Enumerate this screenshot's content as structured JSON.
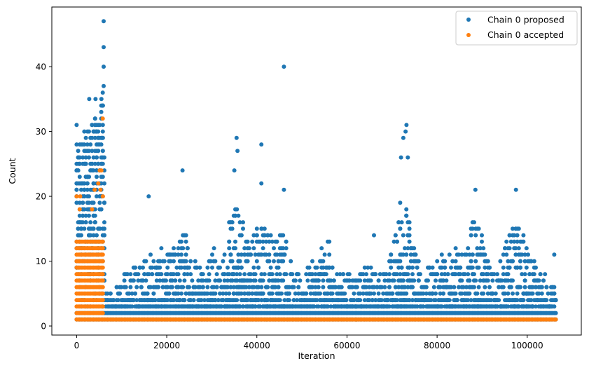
{
  "chart_data": {
    "type": "scatter",
    "xlabel": "Iteration",
    "ylabel": "Count",
    "xlim": [
      -5500,
      112000
    ],
    "ylim": [
      -1.4,
      49.2
    ],
    "xticks": [
      0,
      20000,
      40000,
      60000,
      80000,
      100000
    ],
    "xtick_labels": [
      "0",
      "20000",
      "40000",
      "60000",
      "80000",
      "100000"
    ],
    "yticks": [
      0,
      10,
      20,
      30,
      40
    ],
    "ytick_labels": [
      "0",
      "10",
      "20",
      "30",
      "40"
    ],
    "legend_position": "top-right",
    "series": [
      {
        "name": "Chain 0 proposed",
        "color": "#1f77b4",
        "envelope_x": [
          0,
          2000,
          4000,
          6000,
          6500,
          8000,
          10000,
          12000,
          14000,
          16000,
          18000,
          20000,
          22000,
          24000,
          26000,
          28000,
          30000,
          32000,
          34000,
          36000,
          38000,
          40000,
          42000,
          44000,
          46000,
          48000,
          50000,
          52000,
          54000,
          56000,
          58000,
          60000,
          62000,
          64000,
          66000,
          68000,
          70000,
          72000,
          74000,
          76000,
          78000,
          80000,
          82000,
          84000,
          86000,
          88000,
          90000,
          92000,
          94000,
          96000,
          98000,
          100000,
          102000,
          104000,
          106500
        ],
        "envelope_ymax": [
          28,
          30,
          32,
          35,
          5,
          6,
          8,
          9,
          10,
          11,
          12,
          11,
          13,
          16,
          11,
          10,
          12,
          9,
          17,
          20,
          14,
          16,
          16,
          14,
          17,
          8,
          8,
          10,
          12,
          13,
          8,
          9,
          8,
          9,
          9,
          8,
          12,
          20,
          18,
          10,
          9,
          10,
          13,
          12,
          11,
          17,
          14,
          9,
          10,
          15,
          16,
          12,
          9,
          8,
          6
        ],
        "highlighted_points": [
          {
            "x": 6000,
            "y": 47
          },
          {
            "x": 6000,
            "y": 43
          },
          {
            "x": 6000,
            "y": 40
          },
          {
            "x": 6000,
            "y": 37
          },
          {
            "x": 5800,
            "y": 36
          },
          {
            "x": 5500,
            "y": 35
          },
          {
            "x": 4200,
            "y": 35
          },
          {
            "x": 2800,
            "y": 35
          },
          {
            "x": 0,
            "y": 31
          },
          {
            "x": 46000,
            "y": 40
          },
          {
            "x": 41000,
            "y": 28
          },
          {
            "x": 35500,
            "y": 29
          },
          {
            "x": 35700,
            "y": 27
          },
          {
            "x": 35000,
            "y": 24
          },
          {
            "x": 23500,
            "y": 24
          },
          {
            "x": 16000,
            "y": 20
          },
          {
            "x": 41000,
            "y": 22
          },
          {
            "x": 73200,
            "y": 31
          },
          {
            "x": 73000,
            "y": 30
          },
          {
            "x": 72500,
            "y": 29
          },
          {
            "x": 72000,
            "y": 26
          },
          {
            "x": 73500,
            "y": 26
          },
          {
            "x": 97500,
            "y": 21
          },
          {
            "x": 88500,
            "y": 21
          },
          {
            "x": 46000,
            "y": 21
          },
          {
            "x": 30500,
            "y": 12
          },
          {
            "x": 66000,
            "y": 14
          },
          {
            "x": 106000,
            "y": 11
          }
        ]
      },
      {
        "name": "Chain 0 accepted",
        "color": "#ff7f0e",
        "envelope_x": [
          0,
          1000,
          2000,
          3000,
          4000,
          5000,
          5800,
          6000,
          106500
        ],
        "envelope_ymax": [
          20,
          19,
          20,
          18,
          21,
          24,
          32,
          1,
          1
        ],
        "highlighted_points": [
          {
            "x": 5800,
            "y": 32
          },
          {
            "x": 5500,
            "y": 24
          },
          {
            "x": 4800,
            "y": 22
          },
          {
            "x": 5300,
            "y": 21
          },
          {
            "x": 4000,
            "y": 21
          },
          {
            "x": 800,
            "y": 20
          }
        ]
      }
    ]
  }
}
